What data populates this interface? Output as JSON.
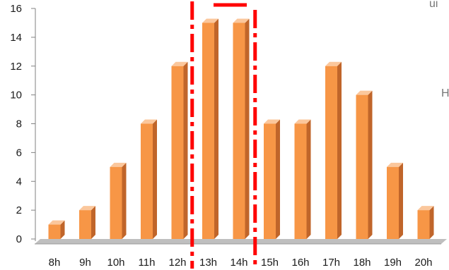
{
  "chart_data": {
    "type": "bar",
    "title": "",
    "xlabel": "",
    "ylabel": "",
    "categories": [
      "8h",
      "9h",
      "10h",
      "11h",
      "12h",
      "13h",
      "14h",
      "15h",
      "16h",
      "17h",
      "18h",
      "19h",
      "20h"
    ],
    "values": [
      1,
      2,
      5,
      8,
      12,
      15,
      15,
      8,
      8,
      12,
      10,
      5,
      2
    ],
    "ylim": [
      0,
      16
    ],
    "yticks": [
      0,
      2,
      4,
      6,
      8,
      10,
      12,
      14,
      16
    ],
    "grid": false,
    "legend": "none",
    "highlight": {
      "categories": [
        "13h",
        "14h"
      ],
      "style": "dash-dot box"
    }
  },
  "colors": {
    "bar_front": "#F79646",
    "bar_side": "#C0652A",
    "bar_top": "#FBC79C",
    "floor": "#BFBFBF",
    "highlight": "#FF0000"
  },
  "partial_labels": {
    "top_right": "ui",
    "mid_right": "H"
  }
}
